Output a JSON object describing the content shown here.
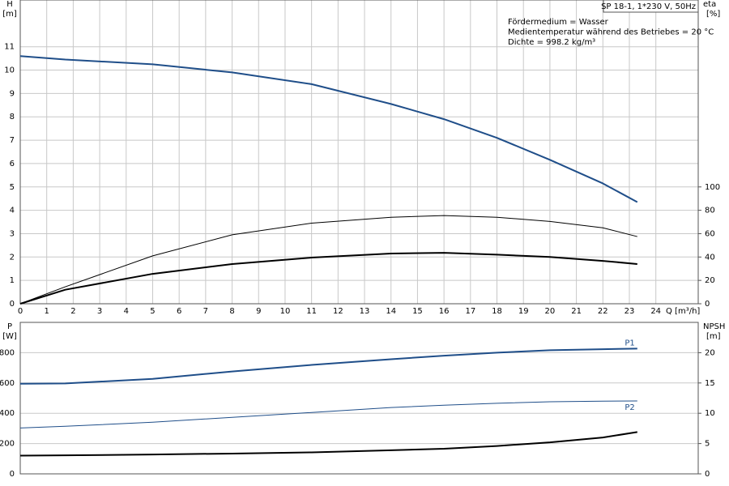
{
  "chart_data": [
    {
      "type": "line",
      "title": "SP 18-1, 1*230 V, 50Hz",
      "annotations": [
        "Fördermedium = Wasser",
        "Medientemperatur während des Betriebes = 20 °C",
        "Dichte = 998.2 kg/m³"
      ],
      "y_label": "H",
      "y_unit": "[m]",
      "y2_label": "eta",
      "y2_unit": "[%]",
      "x_label": "Q [m³/h]",
      "x": [
        0,
        1.7,
        5,
        8,
        11,
        14,
        16,
        18,
        20,
        22,
        23.3
      ],
      "series": [
        {
          "color": "#1f4e89",
          "line_width": 2,
          "values": [
            10.6,
            10.45,
            10.25,
            9.9,
            9.4,
            8.55,
            7.9,
            7.1,
            6.16,
            5.15,
            4.35
          ]
        },
        {
          "color": "#000000",
          "line_width": 1,
          "axis": "y2",
          "values": [
            0,
            14.5,
            41,
            59,
            69,
            74,
            75.5,
            74,
            70.5,
            65,
            57.5
          ]
        },
        {
          "color": "#000000",
          "line_width": 2,
          "axis": "y2",
          "values": [
            0,
            12,
            25.6,
            34,
            39.5,
            43,
            43.6,
            42,
            40,
            36.7,
            34
          ]
        }
      ],
      "xlim": [
        0,
        25.6
      ],
      "xticks": [
        0,
        1,
        2,
        3,
        4,
        5,
        6,
        7,
        8,
        9,
        10,
        11,
        12,
        13,
        14,
        15,
        16,
        17,
        18,
        19,
        20,
        21,
        22,
        23,
        24
      ],
      "ylim": [
        0,
        13
      ],
      "yticks": [
        0,
        1,
        2,
        3,
        4,
        5,
        6,
        7,
        8,
        9,
        10,
        11
      ],
      "y2lim": [
        0,
        260
      ],
      "y2ticks": [
        0,
        20,
        40,
        60,
        80,
        100
      ],
      "grid": true
    },
    {
      "type": "line",
      "y_label": "P",
      "y_unit": "[W]",
      "y2_label": "NPSH",
      "y2_unit": "[m]",
      "x": [
        0,
        1.7,
        5,
        8,
        11,
        14,
        16,
        18,
        20,
        22,
        23.3
      ],
      "series": [
        {
          "name": "P1",
          "color": "#1f4e89",
          "line_width": 2,
          "values": [
            595,
            597,
            627,
            676,
            719,
            757,
            780,
            800,
            816,
            823,
            827
          ]
        },
        {
          "name": "P2",
          "color": "#1f4e89",
          "line_width": 1,
          "values": [
            303,
            314,
            341,
            373,
            405,
            438,
            453,
            466,
            476,
            480,
            481
          ]
        },
        {
          "color": "#000000",
          "line_width": 2,
          "axis": "y2",
          "values": [
            3.0,
            3.05,
            3.2,
            3.35,
            3.55,
            3.9,
            4.15,
            4.6,
            5.2,
            6.0,
            6.9
          ]
        }
      ],
      "xlim": [
        0,
        25.6
      ],
      "ylim": [
        0,
        1000
      ],
      "yticks": [
        0,
        200,
        400,
        600,
        800
      ],
      "y2lim": [
        0,
        25
      ],
      "y2ticks": [
        0,
        5,
        10,
        15,
        20
      ],
      "grid": true
    }
  ]
}
